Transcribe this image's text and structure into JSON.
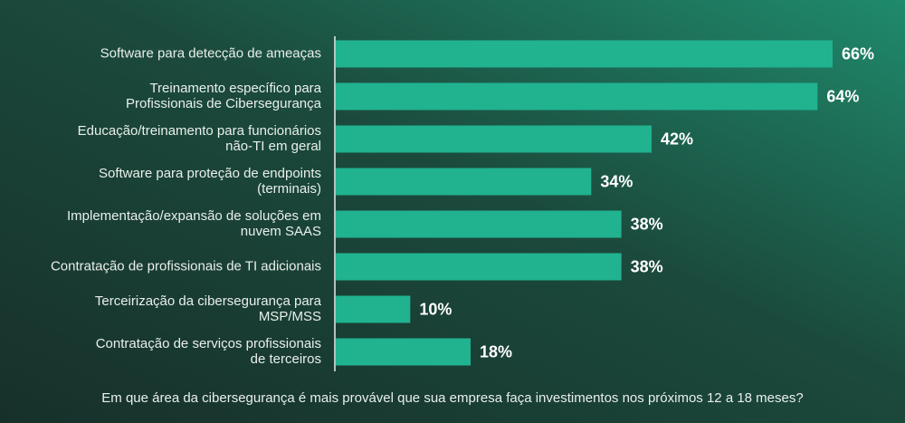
{
  "chart_data": {
    "type": "hbar",
    "categories": [
      [
        "Software para detecção de ameaças"
      ],
      [
        "Treinamento específico para",
        "Profissionais de Cibersegurança"
      ],
      [
        "Educação/treinamento para funcionários",
        "não-TI em geral"
      ],
      [
        "Software para proteção de endpoints",
        "(terminais)"
      ],
      [
        "Implementação/expansão de soluções em",
        "nuvem SAAS"
      ],
      [
        "Contratação de profissionais de TI adicionais"
      ],
      [
        "Terceirização da cibersegurança para",
        "MSP/MSS"
      ],
      [
        "Contratação de serviços profissionais",
        "de terceiros"
      ]
    ],
    "values": [
      66,
      64,
      42,
      34,
      38,
      38,
      10,
      18
    ],
    "value_labels": [
      "66%",
      "64%",
      "42%",
      "34%",
      "38%",
      "38%",
      "10%",
      "18%"
    ],
    "color": "#21b290",
    "caption": "Em que área da cibersegurança é mais provável que sua empresa faça investimentos nos próximos 12 a 18 meses?"
  }
}
